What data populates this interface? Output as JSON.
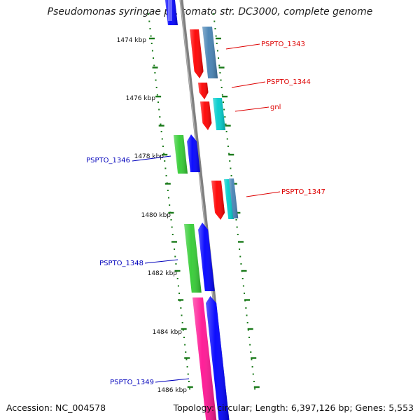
{
  "title": "Pseudomonas syringae pv. tomato str. DC3000, complete genome",
  "footer": {
    "accession": "Accession: NC_004578",
    "summary": "Topology: circular; Length: 6,397,126 bp; Genes: 5,553"
  },
  "scale_labels": [
    "1474 kbp",
    "1476 kbp",
    "1478 kbp",
    "1480 kbp",
    "1482 kbp",
    "1484 kbp",
    "1486 kbp"
  ],
  "gene_labels": [
    {
      "text": "PSPTO_1343",
      "color": "#dd0000"
    },
    {
      "text": "PSPTO_1344",
      "color": "#dd0000"
    },
    {
      "text": "gnl",
      "color": "#dd0000"
    },
    {
      "text": "PSPTO_1346",
      "color": "#0000bb"
    },
    {
      "text": "PSPTO_1347",
      "color": "#dd0000"
    },
    {
      "text": "PSPTO_1348",
      "color": "#0000bb"
    },
    {
      "text": "PSPTO_1349",
      "color": "#0000bb"
    }
  ],
  "colors": {
    "forward_cds": "#ff0000",
    "reverse_cds": "#0000ff",
    "forward_gene": "#4682b4",
    "forward_rna": "#00cccc",
    "reverse_gene": "#33cc33",
    "reverse_other": "#ff1493",
    "backbone": "#808080",
    "ticks": "#1a7a1a"
  }
}
